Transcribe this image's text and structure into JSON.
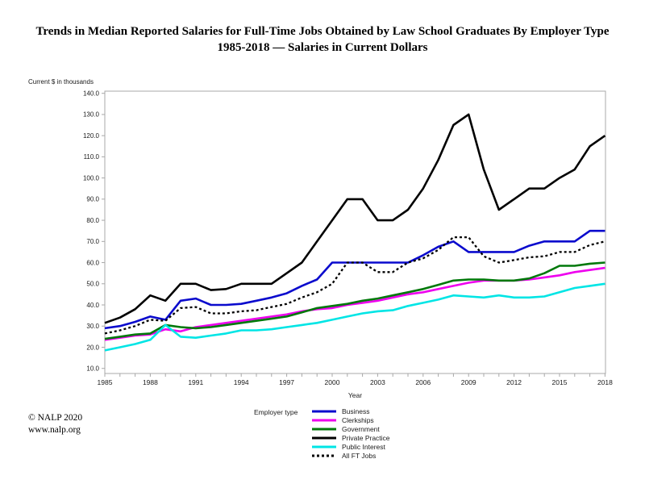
{
  "page": {
    "title_line1": "Trends in Median Reported Salaries for Full-Time Jobs Obtained by Law School Graduates By Employer Type",
    "title_line2": "1985-2018 — Salaries in Current Dollars",
    "footer_line1": "© NALP 2020",
    "footer_line2": "www.nalp.org"
  },
  "chart_data": {
    "type": "line",
    "title": "Trends in Median Reported Salaries for Full-Time Jobs Obtained by Law School Graduates By Employer Type, 1985-2018, Salaries in Current Dollars",
    "y_axis_label": "Current $ in thousands",
    "x_axis_label": "Year",
    "legend_title": "Employer type",
    "ylim": [
      10,
      140
    ],
    "y_ticks": [
      10,
      20,
      30,
      40,
      50,
      60,
      70,
      80,
      90,
      100,
      110,
      120,
      130,
      140
    ],
    "x_tick_labels": [
      1985,
      1988,
      1991,
      1994,
      1997,
      2000,
      2003,
      2006,
      2009,
      2012,
      2015,
      2018
    ],
    "grid": false,
    "legend_position": "bottom",
    "x": [
      1985,
      1986,
      1987,
      1988,
      1989,
      1990,
      1991,
      1992,
      1993,
      1994,
      1995,
      1996,
      1997,
      1998,
      1999,
      2000,
      2001,
      2002,
      2003,
      2004,
      2005,
      2006,
      2007,
      2008,
      2009,
      2010,
      2011,
      2012,
      2013,
      2014,
      2015,
      2016,
      2017,
      2018
    ],
    "series": [
      {
        "name": "Business",
        "color": "#0a0acd",
        "style": "solid",
        "values": [
          29,
          30,
          32,
          34.5,
          33,
          42,
          43,
          40,
          40,
          40.5,
          42,
          43.5,
          45.5,
          49,
          52,
          60,
          60,
          60,
          60,
          60,
          60,
          63.5,
          67.5,
          70,
          65,
          65,
          65,
          65,
          68,
          70,
          70,
          70,
          75,
          75
        ]
      },
      {
        "name": "Clerkships",
        "color": "#ee00ee",
        "style": "solid",
        "values": [
          23.5,
          24.5,
          25.5,
          26,
          28.5,
          27.5,
          29.5,
          30.5,
          31.5,
          32.5,
          33.5,
          34.5,
          35.5,
          37,
          38,
          38.5,
          40,
          41,
          42,
          43.5,
          45,
          46,
          47.5,
          49,
          50.5,
          51.5,
          51.5,
          51.5,
          52,
          53,
          54,
          55.5,
          56.5,
          57.5
        ]
      },
      {
        "name": "Government",
        "color": "#00780a",
        "style": "solid",
        "values": [
          24,
          25,
          26,
          26.5,
          30.5,
          29.5,
          29,
          29.5,
          30.5,
          31.5,
          32.5,
          33.5,
          34.5,
          36.5,
          38.5,
          39.5,
          40.5,
          42,
          43,
          44.5,
          46,
          47.5,
          49.5,
          51.5,
          52,
          52,
          51.5,
          51.5,
          52.5,
          55,
          58.5,
          58.5,
          59.5,
          60
        ]
      },
      {
        "name": "Private Practice",
        "color": "#000000",
        "style": "solid",
        "values": [
          31.5,
          34,
          38,
          44.5,
          42,
          50,
          50,
          47,
          47.5,
          50,
          50,
          50,
          55,
          60,
          70,
          80,
          90,
          90,
          80,
          80,
          85,
          95,
          108.5,
          125,
          130,
          104,
          85,
          90,
          95,
          95,
          100,
          104,
          115,
          120
        ]
      },
      {
        "name": "Public Interest",
        "color": "#00e5e5",
        "style": "solid",
        "values": [
          18.5,
          20,
          21.5,
          23.5,
          30.5,
          25,
          24.5,
          25.5,
          26.5,
          28,
          28,
          28.5,
          29.5,
          30.5,
          31.5,
          33,
          34.5,
          36,
          37,
          37.5,
          39.5,
          41,
          42.5,
          44.5,
          44,
          43.5,
          44.5,
          43.5,
          43.5,
          44,
          46,
          48,
          49,
          50
        ]
      },
      {
        "name": "All FT Jobs",
        "color": "#000000",
        "style": "dashed",
        "values": [
          26.5,
          28,
          30,
          33,
          32.5,
          38.5,
          39,
          36,
          36,
          37,
          37.5,
          39,
          40.5,
          43.5,
          46,
          50,
          60,
          60,
          55.5,
          55.5,
          60,
          62,
          66,
          72,
          72,
          63,
          60,
          61.2,
          62.5,
          63,
          65,
          65,
          68.3,
          70
        ]
      }
    ]
  }
}
